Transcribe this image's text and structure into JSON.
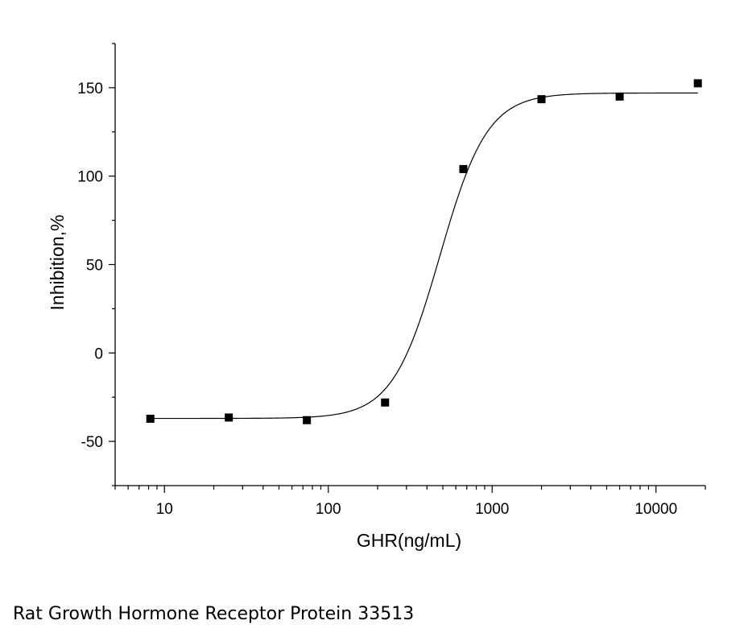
{
  "caption": "Rat Growth Hormone Receptor Protein 33513",
  "chart_data": {
    "type": "scatter",
    "title": "",
    "xlabel": "GHR(ng/mL)",
    "ylabel": "Inhibition,%",
    "x_scale": "log",
    "xlim": [
      5,
      20000
    ],
    "ylim": [
      -75,
      175
    ],
    "x_ticks": [
      10,
      100,
      1000,
      10000
    ],
    "x_tick_labels": [
      "10",
      "100",
      "1000",
      "10000"
    ],
    "y_ticks": [
      -50,
      0,
      50,
      100,
      150
    ],
    "y_tick_labels": [
      "-50",
      "0",
      "50",
      "100",
      "150"
    ],
    "grid": false,
    "legend": "none",
    "series": [
      {
        "x": [
          8.2,
          24.7,
          74,
          222,
          667,
          2000,
          6000,
          18000
        ],
        "y": [
          -37.2,
          -36.5,
          -38,
          -28,
          104,
          143.5,
          145,
          152.5
        ],
        "marker": "square",
        "color": "#000000"
      }
    ],
    "fit": {
      "type": "sigmoid",
      "bottom": -37,
      "top": 147,
      "ec50": 480,
      "hill": 3,
      "color": "#000000"
    }
  }
}
